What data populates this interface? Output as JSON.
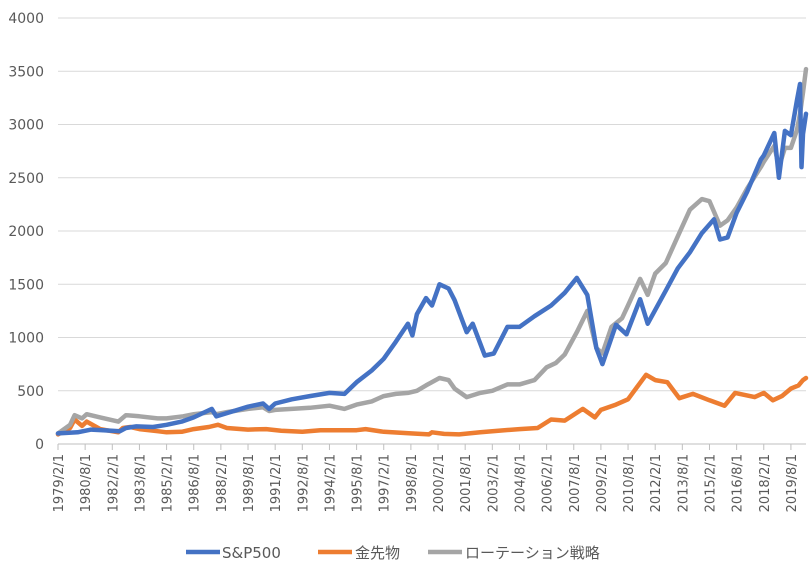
{
  "chart_data": {
    "type": "line",
    "title": "",
    "xlabel": "",
    "ylabel": "",
    "ylim": [
      0,
      4000
    ],
    "yticks": [
      0,
      500,
      1000,
      1500,
      2000,
      2500,
      3000,
      3500,
      4000
    ],
    "xticks": [
      "1979/2/1",
      "1980/8/1",
      "1982/2/1",
      "1983/8/1",
      "1985/2/1",
      "1986/8/1",
      "1988/2/1",
      "1989/8/1",
      "1991/2/1",
      "1992/8/1",
      "1994/2/1",
      "1995/8/1",
      "1997/2/1",
      "1998/8/1",
      "2000/2/1",
      "2001/8/1",
      "2003/2/1",
      "2004/8/1",
      "2006/2/1",
      "2007/8/1",
      "2009/2/1",
      "2010/8/1",
      "2012/2/1",
      "2013/8/1",
      "2015/2/1",
      "2016/8/1",
      "2018/2/1",
      "2019/8/1"
    ],
    "x_range": [
      "1979/2/1",
      "2020/6/1"
    ],
    "grid": "horizontal",
    "legend": "bottom",
    "series": [
      {
        "name": "S&P500",
        "color": "#4472c4",
        "points": [
          [
            "1979/2/1",
            100
          ],
          [
            "1980/3/1",
            110
          ],
          [
            "1980/12/1",
            135
          ],
          [
            "1981/8/1",
            130
          ],
          [
            "1982/7/1",
            120
          ],
          [
            "1982/11/1",
            150
          ],
          [
            "1983/6/1",
            165
          ],
          [
            "1984/5/1",
            160
          ],
          [
            "1985/2/1",
            180
          ],
          [
            "1985/12/1",
            210
          ],
          [
            "1986/8/1",
            250
          ],
          [
            "1987/8/1",
            330
          ],
          [
            "1987/11/1",
            260
          ],
          [
            "1988/6/1",
            290
          ],
          [
            "1989/8/1",
            350
          ],
          [
            "1990/6/1",
            380
          ],
          [
            "1990/10/1",
            330
          ],
          [
            "1991/2/1",
            380
          ],
          [
            "1992/1/1",
            420
          ],
          [
            "1993/1/1",
            450
          ],
          [
            "1994/2/1",
            480
          ],
          [
            "1994/12/1",
            470
          ],
          [
            "1995/8/1",
            580
          ],
          [
            "1996/6/1",
            690
          ],
          [
            "1997/2/1",
            800
          ],
          [
            "1997/10/1",
            960
          ],
          [
            "1998/6/1",
            1130
          ],
          [
            "1998/9/1",
            1020
          ],
          [
            "1998/12/1",
            1220
          ],
          [
            "1999/6/1",
            1370
          ],
          [
            "1999/10/1",
            1300
          ],
          [
            "2000/3/1",
            1500
          ],
          [
            "2000/9/1",
            1460
          ],
          [
            "2001/1/1",
            1350
          ],
          [
            "2001/9/1",
            1050
          ],
          [
            "2002/1/1",
            1130
          ],
          [
            "2002/9/1",
            830
          ],
          [
            "2003/3/1",
            850
          ],
          [
            "2003/12/1",
            1100
          ],
          [
            "2004/8/1",
            1100
          ],
          [
            "2005/6/1",
            1200
          ],
          [
            "2006/5/1",
            1300
          ],
          [
            "2007/2/1",
            1420
          ],
          [
            "2007/10/1",
            1560
          ],
          [
            "2008/5/1",
            1400
          ],
          [
            "2008/11/1",
            900
          ],
          [
            "2009/3/1",
            750
          ],
          [
            "2009/12/1",
            1120
          ],
          [
            "2010/7/1",
            1030
          ],
          [
            "2011/4/1",
            1360
          ],
          [
            "2011/9/1",
            1130
          ],
          [
            "2012/9/1",
            1440
          ],
          [
            "2013/5/1",
            1650
          ],
          [
            "2014/1/1",
            1800
          ],
          [
            "2014/9/1",
            1980
          ],
          [
            "2015/5/1",
            2110
          ],
          [
            "2015/9/1",
            1920
          ],
          [
            "2016/2/1",
            1940
          ],
          [
            "2016/8/1",
            2170
          ],
          [
            "2017/3/1",
            2370
          ],
          [
            "2017/12/1",
            2670
          ],
          [
            "2018/2/1",
            2710
          ],
          [
            "2018/9/1",
            2920
          ],
          [
            "2018/12/1",
            2500
          ],
          [
            "2019/4/1",
            2940
          ],
          [
            "2019/8/1",
            2900
          ],
          [
            "2019/12/1",
            3230
          ],
          [
            "2020/2/1",
            3380
          ],
          [
            "2020/3/1",
            2600
          ],
          [
            "2020/4/1",
            2910
          ],
          [
            "2020/6/1",
            3100
          ]
        ]
      },
      {
        "name": "金先物",
        "color": "#ed7d31",
        "points": [
          [
            "1979/2/1",
            90
          ],
          [
            "1979/10/1",
            150
          ],
          [
            "1980/1/1",
            230
          ],
          [
            "1980/6/1",
            170
          ],
          [
            "1980/9/1",
            210
          ],
          [
            "1981/6/1",
            140
          ],
          [
            "1982/6/1",
            110
          ],
          [
            "1982/9/1",
            150
          ],
          [
            "1983/2/1",
            160
          ],
          [
            "1983/8/1",
            140
          ],
          [
            "1984/8/1",
            120
          ],
          [
            "1985/2/1",
            110
          ],
          [
            "1985/12/1",
            115
          ],
          [
            "1986/8/1",
            140
          ],
          [
            "1987/6/1",
            160
          ],
          [
            "1987/12/1",
            180
          ],
          [
            "1988/6/1",
            150
          ],
          [
            "1989/8/1",
            135
          ],
          [
            "1990/8/1",
            140
          ],
          [
            "1991/6/1",
            125
          ],
          [
            "1992/8/1",
            115
          ],
          [
            "1993/8/1",
            130
          ],
          [
            "1994/2/1",
            130
          ],
          [
            "1995/8/1",
            130
          ],
          [
            "1996/2/1",
            140
          ],
          [
            "1997/2/1",
            115
          ],
          [
            "1998/8/1",
            100
          ],
          [
            "1999/8/1",
            90
          ],
          [
            "1999/10/1",
            110
          ],
          [
            "2000/6/1",
            95
          ],
          [
            "2001/4/1",
            90
          ],
          [
            "2002/6/1",
            110
          ],
          [
            "2003/2/1",
            120
          ],
          [
            "2004/8/1",
            140
          ],
          [
            "2005/8/1",
            150
          ],
          [
            "2006/5/1",
            230
          ],
          [
            "2007/2/1",
            220
          ],
          [
            "2008/2/1",
            330
          ],
          [
            "2008/10/1",
            250
          ],
          [
            "2009/2/1",
            320
          ],
          [
            "2009/12/1",
            370
          ],
          [
            "2010/8/1",
            420
          ],
          [
            "2011/8/1",
            650
          ],
          [
            "2012/2/1",
            600
          ],
          [
            "2012/10/1",
            580
          ],
          [
            "2013/6/1",
            430
          ],
          [
            "2014/3/1",
            470
          ],
          [
            "2015/2/1",
            410
          ],
          [
            "2015/12/1",
            360
          ],
          [
            "2016/7/1",
            480
          ],
          [
            "2017/8/1",
            440
          ],
          [
            "2018/2/1",
            480
          ],
          [
            "2018/8/1",
            410
          ],
          [
            "2019/2/1",
            450
          ],
          [
            "2019/8/1",
            520
          ],
          [
            "2020/1/1",
            550
          ],
          [
            "2020/4/1",
            600
          ],
          [
            "2020/6/1",
            620
          ]
        ]
      },
      {
        "name": "ローテーション戦略",
        "color": "#a5a5a5",
        "points": [
          [
            "1979/2/1",
            100
          ],
          [
            "1979/10/1",
            180
          ],
          [
            "1980/1/1",
            270
          ],
          [
            "1980/6/1",
            240
          ],
          [
            "1980/9/1",
            280
          ],
          [
            "1981/6/1",
            250
          ],
          [
            "1982/6/1",
            210
          ],
          [
            "1982/11/1",
            270
          ],
          [
            "1983/8/1",
            260
          ],
          [
            "1984/8/1",
            240
          ],
          [
            "1985/2/1",
            240
          ],
          [
            "1986/1/1",
            260
          ],
          [
            "1986/8/1",
            280
          ],
          [
            "1987/8/1",
            300
          ],
          [
            "1987/11/1",
            280
          ],
          [
            "1988/6/1",
            300
          ],
          [
            "1989/8/1",
            330
          ],
          [
            "1990/6/1",
            345
          ],
          [
            "1990/10/1",
            310
          ],
          [
            "1991/2/1",
            320
          ],
          [
            "1992/1/1",
            330
          ],
          [
            "1993/1/1",
            340
          ],
          [
            "1994/2/1",
            360
          ],
          [
            "1994/12/1",
            330
          ],
          [
            "1995/8/1",
            370
          ],
          [
            "1996/6/1",
            400
          ],
          [
            "1997/2/1",
            450
          ],
          [
            "1997/10/1",
            470
          ],
          [
            "1998/6/1",
            480
          ],
          [
            "1998/12/1",
            500
          ],
          [
            "1999/6/1",
            550
          ],
          [
            "2000/3/1",
            620
          ],
          [
            "2000/9/1",
            600
          ],
          [
            "2001/1/1",
            520
          ],
          [
            "2001/9/1",
            440
          ],
          [
            "2002/6/1",
            480
          ],
          [
            "2003/2/1",
            500
          ],
          [
            "2003/12/1",
            560
          ],
          [
            "2004/8/1",
            560
          ],
          [
            "2005/6/1",
            600
          ],
          [
            "2006/2/1",
            720
          ],
          [
            "2006/8/1",
            760
          ],
          [
            "2007/2/1",
            840
          ],
          [
            "2007/10/1",
            1050
          ],
          [
            "2008/5/1",
            1250
          ],
          [
            "2008/11/1",
            900
          ],
          [
            "2009/3/1",
            850
          ],
          [
            "2009/9/1",
            1100
          ],
          [
            "2010/4/1",
            1180
          ],
          [
            "2010/8/1",
            1300
          ],
          [
            "2011/4/1",
            1550
          ],
          [
            "2011/9/1",
            1400
          ],
          [
            "2012/2/1",
            1600
          ],
          [
            "2012/9/1",
            1700
          ],
          [
            "2013/5/1",
            1950
          ],
          [
            "2014/1/1",
            2200
          ],
          [
            "2014/9/1",
            2300
          ],
          [
            "2015/2/1",
            2280
          ],
          [
            "2015/9/1",
            2050
          ],
          [
            "2016/2/1",
            2100
          ],
          [
            "2016/8/1",
            2220
          ],
          [
            "2017/3/1",
            2400
          ],
          [
            "2017/12/1",
            2600
          ],
          [
            "2018/2/1",
            2650
          ],
          [
            "2018/9/1",
            2800
          ],
          [
            "2018/12/1",
            2600
          ],
          [
            "2019/4/1",
            2780
          ],
          [
            "2019/8/1",
            2780
          ],
          [
            "2019/12/1",
            2950
          ],
          [
            "2020/2/1",
            3100
          ],
          [
            "2020/4/1",
            3300
          ],
          [
            "2020/6/1",
            3520
          ]
        ]
      }
    ]
  }
}
